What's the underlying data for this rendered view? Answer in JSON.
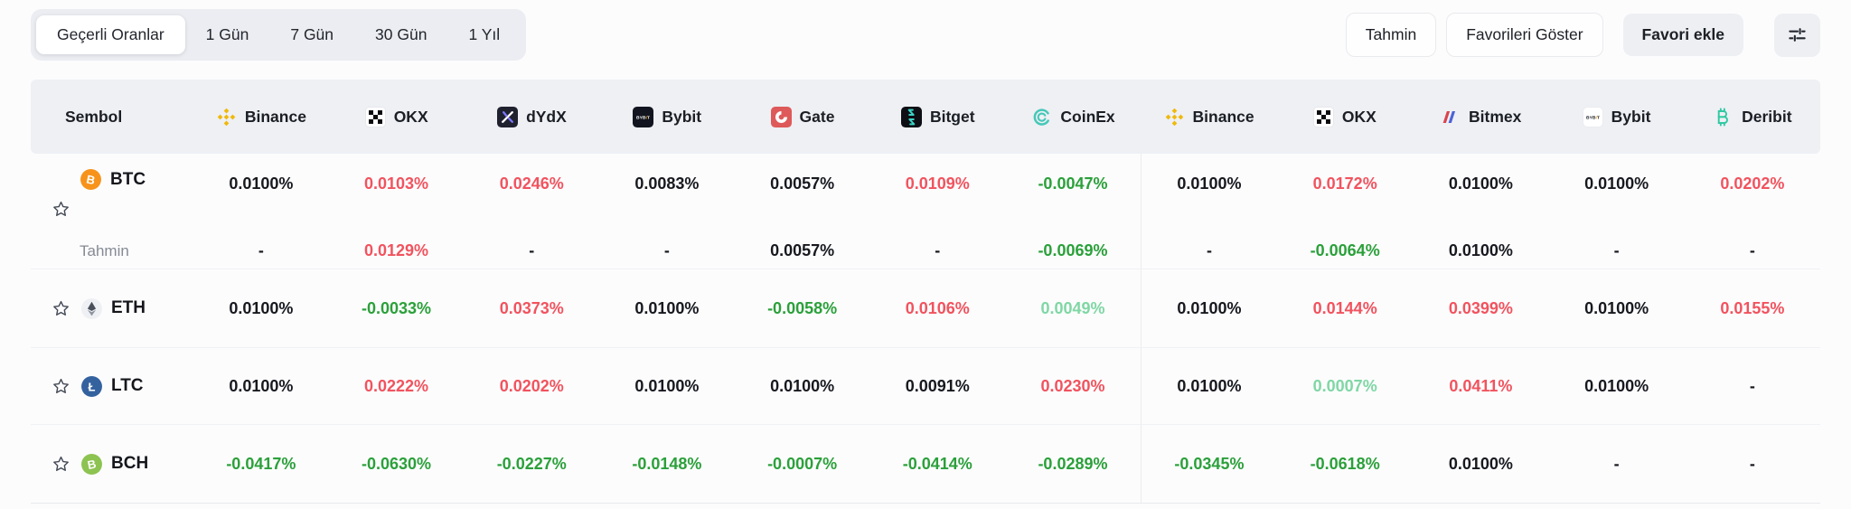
{
  "colors": {
    "red": "#f1535e",
    "green": "#2ba03a",
    "light_green": "#7fd7a4",
    "text_dark": "#17191f",
    "muted_label": "#868a94",
    "binance_yellow": "#F0B90B",
    "header_bg": "#eef0f4"
  },
  "toolbar": {
    "tabs": [
      {
        "label": "Geçerli Oranlar",
        "active": true
      },
      {
        "label": "1 Gün",
        "active": false
      },
      {
        "label": "7 Gün",
        "active": false
      },
      {
        "label": "30 Gün",
        "active": false
      },
      {
        "label": "1 Yıl",
        "active": false
      }
    ],
    "buttons": {
      "tahmin": "Tahmin",
      "favorileri_goster": "Favorileri Göster",
      "favori_ekle": "Favori ekle"
    }
  },
  "table": {
    "symbol_header": "Sembol",
    "tahmin_label": "Tahmin",
    "exchange_groups": [
      [
        {
          "name": "Binance",
          "icon": "binance"
        },
        {
          "name": "OKX",
          "icon": "okx"
        },
        {
          "name": "dYdX",
          "icon": "dydx"
        },
        {
          "name": "Bybit",
          "icon": "bybit-dark"
        },
        {
          "name": "Gate",
          "icon": "gate"
        },
        {
          "name": "Bitget",
          "icon": "bitget"
        },
        {
          "name": "CoinEx",
          "icon": "coinex"
        }
      ],
      [
        {
          "name": "Binance",
          "icon": "binance"
        },
        {
          "name": "OKX",
          "icon": "okx"
        },
        {
          "name": "Bitmex",
          "icon": "bitmex"
        },
        {
          "name": "Bybit",
          "icon": "bybit-light"
        },
        {
          "name": "Deribit",
          "icon": "deribit"
        }
      ]
    ],
    "rows": [
      {
        "ticker": "BTC",
        "icon": "btc",
        "favorited": false,
        "cells_group1": [
          {
            "v": "0.0100%",
            "c": "dark"
          },
          {
            "v": "0.0103%",
            "c": "red"
          },
          {
            "v": "0.0246%",
            "c": "red"
          },
          {
            "v": "0.0083%",
            "c": "dark"
          },
          {
            "v": "0.0057%",
            "c": "dark"
          },
          {
            "v": "0.0109%",
            "c": "red"
          },
          {
            "v": "-0.0047%",
            "c": "green"
          }
        ],
        "cells_group2": [
          {
            "v": "0.0100%",
            "c": "dark"
          },
          {
            "v": "0.0172%",
            "c": "red"
          },
          {
            "v": "0.0100%",
            "c": "dark"
          },
          {
            "v": "0.0100%",
            "c": "dark"
          },
          {
            "v": "0.0202%",
            "c": "red"
          }
        ],
        "tahmin_group1": [
          {
            "v": "-",
            "c": "dark"
          },
          {
            "v": "0.0129%",
            "c": "red"
          },
          {
            "v": "-",
            "c": "dark"
          },
          {
            "v": "-",
            "c": "dark"
          },
          {
            "v": "0.0057%",
            "c": "dark"
          },
          {
            "v": "-",
            "c": "dark"
          },
          {
            "v": "-0.0069%",
            "c": "green"
          }
        ],
        "tahmin_group2": [
          {
            "v": "-",
            "c": "dark"
          },
          {
            "v": "-0.0064%",
            "c": "green"
          },
          {
            "v": "0.0100%",
            "c": "dark"
          },
          {
            "v": "-",
            "c": "dark"
          },
          {
            "v": "-",
            "c": "dark"
          }
        ]
      },
      {
        "ticker": "ETH",
        "icon": "eth",
        "favorited": false,
        "cells_group1": [
          {
            "v": "0.0100%",
            "c": "dark"
          },
          {
            "v": "-0.0033%",
            "c": "green"
          },
          {
            "v": "0.0373%",
            "c": "red"
          },
          {
            "v": "0.0100%",
            "c": "dark"
          },
          {
            "v": "-0.0058%",
            "c": "green"
          },
          {
            "v": "0.0106%",
            "c": "red"
          },
          {
            "v": "0.0049%",
            "c": "lgreen"
          }
        ],
        "cells_group2": [
          {
            "v": "0.0100%",
            "c": "dark"
          },
          {
            "v": "0.0144%",
            "c": "red"
          },
          {
            "v": "0.0399%",
            "c": "red"
          },
          {
            "v": "0.0100%",
            "c": "dark"
          },
          {
            "v": "0.0155%",
            "c": "red"
          }
        ]
      },
      {
        "ticker": "LTC",
        "icon": "ltc",
        "favorited": false,
        "cells_group1": [
          {
            "v": "0.0100%",
            "c": "dark"
          },
          {
            "v": "0.0222%",
            "c": "red"
          },
          {
            "v": "0.0202%",
            "c": "red"
          },
          {
            "v": "0.0100%",
            "c": "dark"
          },
          {
            "v": "0.0100%",
            "c": "dark"
          },
          {
            "v": "0.0091%",
            "c": "dark"
          },
          {
            "v": "0.0230%",
            "c": "red"
          }
        ],
        "cells_group2": [
          {
            "v": "0.0100%",
            "c": "dark"
          },
          {
            "v": "0.0007%",
            "c": "lgreen"
          },
          {
            "v": "0.0411%",
            "c": "red"
          },
          {
            "v": "0.0100%",
            "c": "dark"
          },
          {
            "v": "-",
            "c": "dark"
          }
        ]
      },
      {
        "ticker": "BCH",
        "icon": "bch",
        "favorited": false,
        "cells_group1": [
          {
            "v": "-0.0417%",
            "c": "green"
          },
          {
            "v": "-0.0630%",
            "c": "green"
          },
          {
            "v": "-0.0227%",
            "c": "green"
          },
          {
            "v": "-0.0148%",
            "c": "green"
          },
          {
            "v": "-0.0007%",
            "c": "green"
          },
          {
            "v": "-0.0414%",
            "c": "green"
          },
          {
            "v": "-0.0289%",
            "c": "green"
          }
        ],
        "cells_group2": [
          {
            "v": "-0.0345%",
            "c": "green"
          },
          {
            "v": "-0.0618%",
            "c": "green"
          },
          {
            "v": "0.0100%",
            "c": "dark"
          },
          {
            "v": "-",
            "c": "dark"
          },
          {
            "v": "-",
            "c": "dark"
          }
        ]
      }
    ]
  }
}
